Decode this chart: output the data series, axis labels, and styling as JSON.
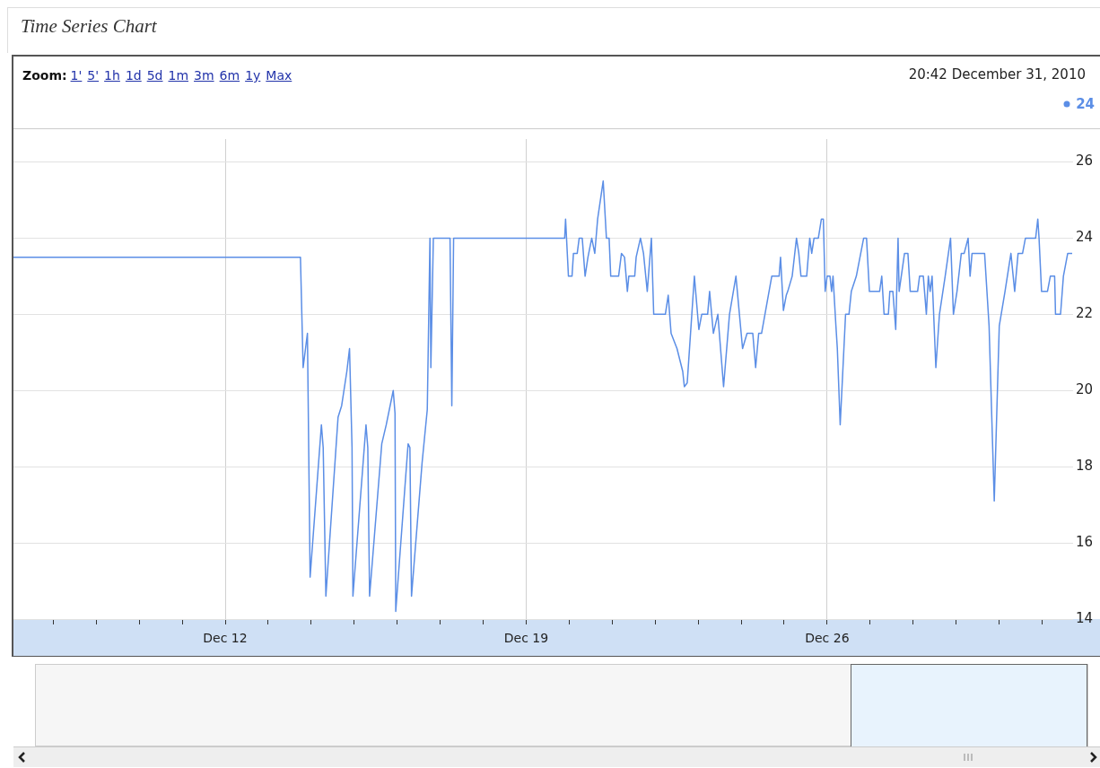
{
  "chart_data": {
    "type": "line",
    "title": "Time Series Chart",
    "annotations": [
      "Zoom:",
      "1'",
      "5'",
      "1h",
      "1d",
      "5d",
      "1m",
      "3m",
      "6m",
      "1y",
      "Max",
      "20:42 December 31, 2010",
      "24"
    ],
    "x": [
      "2010-12-07T01:48",
      "2010-12-13T18:00",
      "2010-12-13T19:30",
      "2010-12-13T21:54",
      "2010-12-13T23:24",
      "2010-12-14T05:42",
      "2010-12-14T06:42",
      "2010-12-14T08:12",
      "2010-12-14T15:00",
      "2010-12-14T17:00",
      "2010-12-14T19:54",
      "2010-12-14T21:24",
      "2010-12-14T22:48",
      "2010-12-14T23:18",
      "2010-12-15T06:36",
      "2010-12-15T07:36",
      "2010-12-15T08:36",
      "2010-12-15T15:24",
      "2010-12-15T17:54",
      "2010-12-15T21:48",
      "2010-12-15T22:48",
      "2010-12-15T23:12",
      "2010-12-16T06:06",
      "2010-12-16T07:06",
      "2010-12-16T08:00",
      "2010-12-16T13:54",
      "2010-12-16T16:48",
      "2010-12-16T18:18",
      "2010-12-16T18:48",
      "2010-12-16T20:12",
      "2010-12-17T05:30",
      "2010-12-17T06:30",
      "2010-12-17T07:30",
      "2010-12-19T21:30",
      "2010-12-19T22:00",
      "2010-12-19T23:36",
      "2010-12-20T01:36",
      "2010-12-20T02:24",
      "2010-12-20T04:30",
      "2010-12-20T05:36",
      "2010-12-20T07:18",
      "2010-12-20T08:54",
      "2010-12-20T10:30",
      "2010-12-20T12:36",
      "2010-12-20T14:18",
      "2010-12-20T15:54",
      "2010-12-20T19:00",
      "2010-12-20T20:48",
      "2010-12-20T22:18",
      "2010-12-20T23:12",
      "2010-12-21T03:36",
      "2010-12-21T05:12",
      "2010-12-21T06:54",
      "2010-12-21T08:30",
      "2010-12-21T09:18",
      "2010-12-21T12:36",
      "2010-12-21T13:24",
      "2010-12-21T15:48",
      "2010-12-21T17:30",
      "2010-12-21T19:36",
      "2010-12-21T21:54",
      "2010-12-21T23:12",
      "2010-12-22T05:42",
      "2010-12-22T07:18",
      "2010-12-22T08:54",
      "2010-12-22T12:12",
      "2010-12-22T15:24",
      "2010-12-22T16:18",
      "2010-12-22T17:54",
      "2010-12-22T21:54",
      "2010-12-23T00:24",
      "2010-12-23T02:00",
      "2010-12-23T05:18",
      "2010-12-23T06:24",
      "2010-12-23T08:30",
      "2010-12-23T11:00",
      "2010-12-23T14:12",
      "2010-12-23T17:30",
      "2010-12-23T21:06",
      "2010-12-24T00:48",
      "2010-12-24T03:18",
      "2010-12-24T06:30",
      "2010-12-24T08:06",
      "2010-12-24T09:48",
      "2010-12-24T11:24",
      "2010-12-24T17:06",
      "2010-12-24T21:12",
      "2010-12-24T22:00",
      "2010-12-24T23:36",
      "2010-12-25T01:12",
      "2010-12-25T02:00",
      "2010-12-25T04:30",
      "2010-12-25T06:54",
      "2010-12-25T08:12",
      "2010-12-25T09:24",
      "2010-12-25T12:36",
      "2010-12-25T14:18",
      "2010-12-25T15:24",
      "2010-12-25T16:42",
      "2010-12-25T19:06",
      "2010-12-25T20:48",
      "2010-12-25T21:54",
      "2010-12-25T22:54",
      "2010-12-26T00:00",
      "2010-12-26T01:36",
      "2010-12-26T02:30",
      "2010-12-26T03:18",
      "2010-12-26T04:54",
      "2010-12-26T05:42",
      "2010-12-26T07:18",
      "2010-12-26T10:18",
      "2010-12-26T12:12",
      "2010-12-26T13:30",
      "2010-12-26T16:18",
      "2010-12-26T20:24",
      "2010-12-26T22:00",
      "2010-12-26T23:36",
      "2010-12-27T05:18",
      "2010-12-27T06:30",
      "2010-12-27T07:48",
      "2010-12-27T10:12",
      "2010-12-27T11:00",
      "2010-12-27T12:42",
      "2010-12-27T14:18",
      "2010-12-27T15:36",
      "2010-12-27T16:12",
      "2010-12-27T19:12",
      "2010-12-27T21:06",
      "2010-12-27T22:24",
      "2010-12-28T02:30",
      "2010-12-28T03:36",
      "2010-12-28T05:42",
      "2010-12-28T07:24",
      "2010-12-28T08:30",
      "2010-12-28T09:30",
      "2010-12-28T10:36",
      "2010-12-28T12:42",
      "2010-12-28T14:42",
      "2010-12-28T17:54",
      "2010-12-28T20:54",
      "2010-12-28T22:30",
      "2010-12-29T00:30",
      "2010-12-29T02:54",
      "2010-12-29T04:30",
      "2010-12-29T06:42",
      "2010-12-29T07:48",
      "2010-12-29T08:54",
      "2010-12-29T15:54",
      "2010-12-29T18:24",
      "2010-12-29T21:18",
      "2010-12-30T00:06",
      "2010-12-30T03:18",
      "2010-12-30T06:36",
      "2010-12-30T08:42",
      "2010-12-30T10:36",
      "2010-12-30T13:06",
      "2010-12-30T14:42",
      "2010-12-30T20:24",
      "2010-12-30T21:36",
      "2010-12-30T22:18",
      "2010-12-30T23:42",
      "2010-12-31T03:00",
      "2010-12-31T04:36",
      "2010-12-31T07:00",
      "2010-12-31T07:30",
      "2010-12-31T10:18",
      "2010-12-31T11:54",
      "2010-12-31T14:18",
      "2010-12-31T16:48"
    ],
    "series": [
      {
        "color": "#5b8ee6",
        "values": [
          23.5,
          23.5,
          20.6,
          21.5,
          15.1,
          19.1,
          18.5,
          14.6,
          19.3,
          19.6,
          20.5,
          21.1,
          18.5,
          14.6,
          19.1,
          18.5,
          14.6,
          18.6,
          19.1,
          20.0,
          19.4,
          14.2,
          18.6,
          18.5,
          14.6,
          18.1,
          19.5,
          24.0,
          20.6,
          24.0,
          24.0,
          19.6,
          24.0,
          24.0,
          24.5,
          23.0,
          23.0,
          23.6,
          23.6,
          24.0,
          24.0,
          23.0,
          23.5,
          24.0,
          23.6,
          24.5,
          25.5,
          24.0,
          24.0,
          23.0,
          23.0,
          23.6,
          23.5,
          22.6,
          23.0,
          23.0,
          23.5,
          24.0,
          23.6,
          22.6,
          24.0,
          22.0,
          22.0,
          22.5,
          21.5,
          21.1,
          20.5,
          20.1,
          20.2,
          23.0,
          21.6,
          22.0,
          22.0,
          22.6,
          21.5,
          22.0,
          20.1,
          22.0,
          23.0,
          21.1,
          21.5,
          21.5,
          20.6,
          21.5,
          21.5,
          23.0,
          23.0,
          23.5,
          22.1,
          22.5,
          22.6,
          23.0,
          24.0,
          23.6,
          23.0,
          23.0,
          24.0,
          23.6,
          24.0,
          24.0,
          24.5,
          24.5,
          22.6,
          23.0,
          23.0,
          22.6,
          23.0,
          21.7,
          21.1,
          19.1,
          22.0,
          22.0,
          22.6,
          23.0,
          24.0,
          24.0,
          22.6,
          22.6,
          23.0,
          22.0,
          22.0,
          22.6,
          22.6,
          21.6,
          24.0,
          22.6,
          23.6,
          23.6,
          22.6,
          22.6,
          23.0,
          23.0,
          22.0,
          23.0,
          22.6,
          23.0,
          20.6,
          22.0,
          23.0,
          24.0,
          22.0,
          22.6,
          23.6,
          23.6,
          24.0,
          23.0,
          23.6,
          23.6,
          21.7,
          17.1,
          21.7,
          22.6,
          23.6,
          22.6,
          23.6,
          23.6,
          24.0,
          24.0,
          24.5,
          24.0,
          22.6,
          22.6,
          23.0,
          23.0,
          22.0,
          22.0,
          23.0,
          23.6,
          23.6
        ]
      }
    ],
    "xlim": [
      "2010-12-07T01:48",
      "2010-12-31T17:18"
    ],
    "xticks": [
      {
        "value": "2010-12-08",
        "label": null
      },
      {
        "value": "2010-12-09",
        "label": null
      },
      {
        "value": "2010-12-10",
        "label": null
      },
      {
        "value": "2010-12-11",
        "label": null
      },
      {
        "value": "2010-12-12",
        "label": "Dec 12"
      },
      {
        "value": "2010-12-13",
        "label": null
      },
      {
        "value": "2010-12-14",
        "label": null
      },
      {
        "value": "2010-12-15",
        "label": null
      },
      {
        "value": "2010-12-16",
        "label": null
      },
      {
        "value": "2010-12-17",
        "label": null
      },
      {
        "value": "2010-12-18",
        "label": null
      },
      {
        "value": "2010-12-19",
        "label": "Dec 19"
      },
      {
        "value": "2010-12-20",
        "label": null
      },
      {
        "value": "2010-12-21",
        "label": null
      },
      {
        "value": "2010-12-22",
        "label": null
      },
      {
        "value": "2010-12-23",
        "label": null
      },
      {
        "value": "2010-12-24",
        "label": null
      },
      {
        "value": "2010-12-25",
        "label": null
      },
      {
        "value": "2010-12-26",
        "label": "Dec 26"
      },
      {
        "value": "2010-12-27",
        "label": null
      },
      {
        "value": "2010-12-28",
        "label": null
      },
      {
        "value": "2010-12-29",
        "label": null
      },
      {
        "value": "2010-12-30",
        "label": null
      },
      {
        "value": "2010-12-31",
        "label": null
      }
    ],
    "ylim": [
      14,
      26.6
    ],
    "yticks": [
      14,
      16,
      18,
      20,
      22,
      24,
      26
    ],
    "grid": true
  }
}
